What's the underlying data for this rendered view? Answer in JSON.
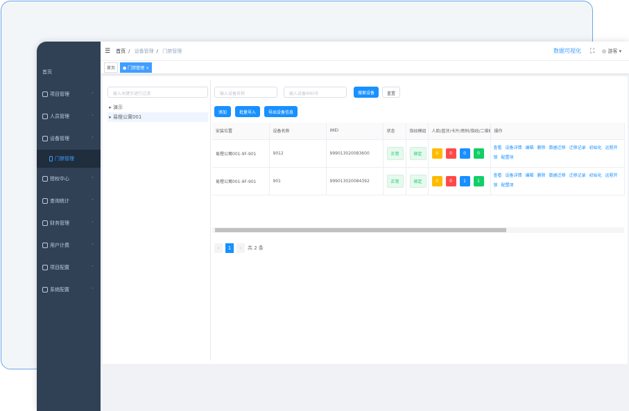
{
  "sidebar": {
    "home": "首页",
    "items": [
      {
        "label": "项目管理",
        "icon": "folder-icon"
      },
      {
        "label": "人员管理",
        "icon": "user-icon"
      },
      {
        "label": "设备管理",
        "icon": "device-icon",
        "expanded": true
      },
      {
        "label": "授权中心",
        "icon": "shield-icon"
      },
      {
        "label": "查询统计",
        "icon": "chart-icon"
      },
      {
        "label": "财务管理",
        "icon": "money-icon"
      },
      {
        "label": "用户计费",
        "icon": "billing-icon"
      },
      {
        "label": "项目配置",
        "icon": "list-icon"
      },
      {
        "label": "系统配置",
        "icon": "gear-icon"
      }
    ],
    "sub_active": "门禁管理"
  },
  "header": {
    "breadcrumb": [
      "首页",
      "设备管理",
      "门禁管理"
    ],
    "data_viz": "数据可视化",
    "user": "游客"
  },
  "tags": {
    "home": "首页",
    "active": "门禁管理"
  },
  "tree": {
    "filter_placeholder": "输入关键字进行过滤",
    "nodes": [
      "演示",
      "易橙公寓001"
    ]
  },
  "search": {
    "name_placeholder": "输入设备名称",
    "imei_placeholder": "输入设备IMEI号",
    "search": "搜索设备",
    "reset": "重置"
  },
  "actions": {
    "add": "添加",
    "import": "批量导入",
    "export": "导出设备信息"
  },
  "table": {
    "headers": [
      "安装位置",
      "设备名称",
      "IMEI",
      "状态",
      "指纹模组",
      "人脸/蓝牙/卡片/密码/指纹/二维码",
      "操作"
    ],
    "rows": [
      {
        "location": "易橙公寓001-9F-901",
        "name": "9012",
        "imei": "999013020083600",
        "status": "正常",
        "fp": "绑定",
        "counts": [
          "0",
          "0",
          "0",
          "0"
        ]
      },
      {
        "location": "易橙公寓001-9F-901",
        "name": "901",
        "imei": "999013020084392",
        "status": "正常",
        "fp": "绑定",
        "counts": [
          "0",
          "0",
          "1",
          "1"
        ]
      }
    ],
    "ops": [
      "查看",
      "设备详情",
      "编辑",
      "删除",
      "数据迁移",
      "迁移记录",
      "初始化",
      "远程开锁",
      "配置项"
    ],
    "count_colors": [
      "#ffba00",
      "#ff4949",
      "#1890ff",
      "#13ce66"
    ]
  },
  "pagination": {
    "page": "1",
    "total": "共 2 条"
  },
  "colors": {
    "primary": "#1890ff",
    "sidebar": "#304156"
  }
}
